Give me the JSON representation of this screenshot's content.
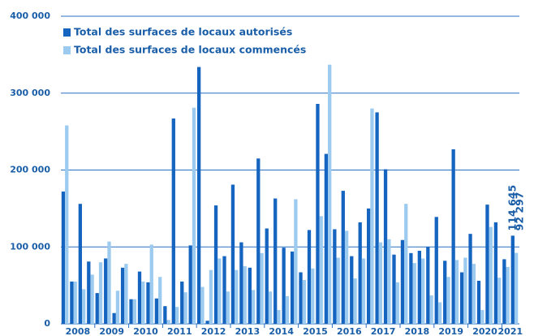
{
  "chart_data": {
    "type": "bar",
    "categories": [
      "2008",
      null,
      null,
      null,
      "2009",
      null,
      null,
      null,
      "2010",
      null,
      null,
      null,
      "2011",
      null,
      null,
      null,
      "2012",
      null,
      null,
      null,
      "2013",
      null,
      null,
      null,
      "2014",
      null,
      null,
      null,
      "2015",
      null,
      null,
      null,
      "2016",
      null,
      null,
      null,
      "2017",
      null,
      null,
      null,
      "2018",
      null,
      null,
      null,
      "2019",
      null,
      null,
      null,
      "2020",
      null,
      null,
      null,
      "2021",
      null
    ],
    "series": [
      {
        "name": "Total des surfaces de locaux autorisés",
        "color": "#1565c0",
        "values": [
          172000,
          55000,
          156000,
          81000,
          40000,
          85000,
          14000,
          73000,
          32000,
          68000,
          54000,
          33000,
          23000,
          267000,
          55000,
          102000,
          334000,
          4000,
          154000,
          88000,
          181000,
          106000,
          73000,
          215000,
          124000,
          163000,
          99000,
          94000,
          67000,
          122000,
          286000,
          221000,
          123000,
          173000,
          88000,
          132000,
          150000,
          275000,
          201000,
          90000,
          109000,
          92000,
          95000,
          100000,
          139000,
          82000,
          227000,
          67000,
          117000,
          56000,
          155000,
          132000,
          84000,
          114645
        ],
        "value_labels": [
          null,
          null,
          null,
          null,
          null,
          null,
          null,
          null,
          null,
          null,
          null,
          null,
          null,
          null,
          null,
          null,
          null,
          null,
          null,
          null,
          null,
          null,
          null,
          null,
          null,
          null,
          null,
          null,
          null,
          null,
          null,
          null,
          null,
          null,
          null,
          null,
          null,
          null,
          null,
          null,
          null,
          null,
          null,
          null,
          null,
          null,
          null,
          null,
          null,
          null,
          null,
          null,
          null,
          "114 645"
        ]
      },
      {
        "name": "Total des surfaces de locaux commencés",
        "color": "#9ccbef",
        "values": [
          258000,
          55000,
          45000,
          64000,
          80000,
          107000,
          43000,
          78000,
          32000,
          55000,
          103000,
          61000,
          5000,
          22000,
          41000,
          281000,
          48000,
          70000,
          85000,
          42000,
          70000,
          75000,
          44000,
          92000,
          42000,
          18000,
          36000,
          162000,
          57000,
          72000,
          140000,
          337000,
          86000,
          121000,
          59000,
          85000,
          280000,
          106000,
          110000,
          54000,
          156000,
          79000,
          85000,
          37000,
          28000,
          61000,
          83000,
          86000,
          78000,
          18000,
          126000,
          60000,
          74000,
          92297
        ],
        "value_labels": [
          null,
          null,
          null,
          null,
          null,
          null,
          null,
          null,
          null,
          null,
          null,
          null,
          null,
          null,
          null,
          null,
          null,
          null,
          null,
          null,
          null,
          null,
          null,
          null,
          null,
          null,
          null,
          null,
          null,
          null,
          null,
          null,
          null,
          null,
          null,
          null,
          null,
          null,
          null,
          null,
          null,
          null,
          null,
          null,
          null,
          null,
          null,
          null,
          null,
          null,
          null,
          null,
          null,
          "92 297"
        ]
      }
    ],
    "ylim": [
      0,
      400000
    ],
    "yticks": [
      0,
      {
        "value": 100000,
        "label": "100 000"
      },
      {
        "value": 200000,
        "label": "200 000"
      },
      {
        "value": 300000,
        "label": "300 000"
      },
      {
        "value": 400000,
        "label": "400 000"
      }
    ],
    "grid": true,
    "legend": "top-left"
  }
}
